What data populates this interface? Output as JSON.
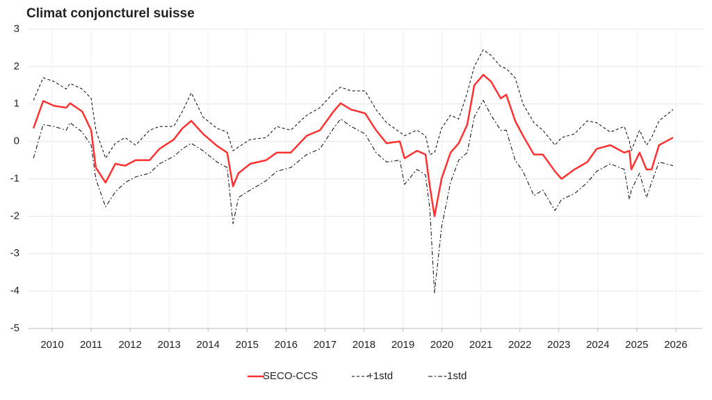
{
  "chart_data": {
    "type": "line",
    "title": "Climat conjoncturel suisse",
    "x": [
      2010.02,
      2010.27,
      2010.55,
      2010.86,
      2010.96,
      2011.27,
      2011.5,
      2011.62,
      2011.87,
      2012.12,
      2012.37,
      2012.64,
      2013.0,
      2013.25,
      2013.62,
      2013.84,
      2014.07,
      2014.37,
      2014.73,
      2014.99,
      2015.14,
      2015.28,
      2015.58,
      2015.99,
      2016.26,
      2016.62,
      2017.03,
      2017.37,
      2017.72,
      2017.9,
      2018.17,
      2018.53,
      2018.81,
      2019.08,
      2019.42,
      2019.54,
      2019.86,
      2020.08,
      2020.19,
      2020.31,
      2020.49,
      2020.72,
      2020.93,
      2021.15,
      2021.33,
      2021.56,
      2021.76,
      2022.01,
      2022.15,
      2022.38,
      2022.58,
      2022.86,
      2023.09,
      2023.4,
      2023.57,
      2023.9,
      2024.23,
      2024.47,
      2024.82,
      2025.18,
      2025.31,
      2025.36,
      2025.57,
      2025.75,
      2025.88,
      2026.07,
      2026.43
    ],
    "series": [
      {
        "name": "SECO-CCS",
        "color": "#ff3030",
        "width": 2.5,
        "dash": "none",
        "values": [
          0.35,
          1.08,
          0.95,
          0.9,
          1.02,
          0.8,
          0.3,
          -0.7,
          -1.1,
          -0.6,
          -0.65,
          -0.5,
          -0.5,
          -0.2,
          0.05,
          0.35,
          0.55,
          0.2,
          -0.12,
          -0.3,
          -1.2,
          -0.85,
          -0.6,
          -0.5,
          -0.3,
          -0.3,
          0.15,
          0.3,
          0.8,
          1.02,
          0.85,
          0.75,
          0.3,
          -0.05,
          0.0,
          -0.45,
          -0.25,
          -0.35,
          -1.2,
          -2.0,
          -1.0,
          -0.3,
          -0.05,
          0.45,
          1.5,
          1.78,
          1.6,
          1.15,
          1.25,
          0.55,
          0.15,
          -0.35,
          -0.35,
          -0.8,
          -1.0,
          -0.75,
          -0.55,
          -0.2,
          -0.1,
          -0.3,
          -0.25,
          -0.75,
          -0.3,
          -0.75,
          -0.75,
          -0.1,
          0.1
        ]
      },
      {
        "name": "+1std",
        "color": "#000000",
        "width": 1,
        "dash": "4,3",
        "values": [
          1.1,
          1.7,
          1.6,
          1.4,
          1.55,
          1.4,
          1.15,
          0.3,
          -0.45,
          -0.05,
          0.1,
          -0.1,
          0.3,
          0.4,
          0.4,
          0.8,
          1.3,
          0.65,
          0.35,
          0.25,
          -0.25,
          -0.15,
          0.05,
          0.1,
          0.4,
          0.3,
          0.7,
          0.9,
          1.3,
          1.45,
          1.35,
          1.35,
          0.85,
          0.5,
          0.25,
          0.15,
          0.3,
          0.15,
          -0.35,
          -0.3,
          0.35,
          0.7,
          0.6,
          1.3,
          2.0,
          2.45,
          2.3,
          2.0,
          1.95,
          1.7,
          1.0,
          0.5,
          0.3,
          -0.1,
          0.1,
          0.2,
          0.55,
          0.5,
          0.25,
          0.4,
          0.0,
          -0.25,
          0.3,
          -0.1,
          0.1,
          0.55,
          0.85
        ]
      },
      {
        "name": "-1std",
        "color": "#000000",
        "width": 1,
        "dash": "6,3,2,3",
        "values": [
          -0.45,
          0.45,
          0.4,
          0.3,
          0.5,
          0.25,
          -0.1,
          -1.0,
          -1.75,
          -1.35,
          -1.1,
          -0.95,
          -0.85,
          -0.6,
          -0.4,
          -0.2,
          -0.05,
          -0.25,
          -0.55,
          -0.7,
          -2.2,
          -1.5,
          -1.3,
          -1.05,
          -0.8,
          -0.7,
          -0.35,
          -0.2,
          0.35,
          0.6,
          0.4,
          0.2,
          -0.3,
          -0.55,
          -0.5,
          -1.15,
          -0.75,
          -0.9,
          -1.8,
          -4.05,
          -2.3,
          -1.1,
          -0.5,
          -0.3,
          0.65,
          1.1,
          0.7,
          0.3,
          0.3,
          -0.5,
          -0.8,
          -1.45,
          -1.3,
          -1.85,
          -1.55,
          -1.4,
          -1.1,
          -0.8,
          -0.6,
          -0.75,
          -1.55,
          -1.3,
          -0.85,
          -1.5,
          -1.1,
          -0.55,
          -0.65
        ]
      }
    ],
    "xlim": [
      2009.875,
      2027.18
    ],
    "xticks": [
      {
        "value": 2010.5,
        "label": "2010"
      },
      {
        "value": 2011.5,
        "label": "2011"
      },
      {
        "value": 2012.5,
        "label": "2012"
      },
      {
        "value": 2013.5,
        "label": "2013"
      },
      {
        "value": 2014.5,
        "label": "2014"
      },
      {
        "value": 2015.5,
        "label": "2015"
      },
      {
        "value": 2016.5,
        "label": "2016"
      },
      {
        "value": 2017.5,
        "label": "2017"
      },
      {
        "value": 2018.5,
        "label": "2018"
      },
      {
        "value": 2019.5,
        "label": "2019"
      },
      {
        "value": 2020.5,
        "label": "2020"
      },
      {
        "value": 2021.5,
        "label": "2021"
      },
      {
        "value": 2022.5,
        "label": "2022"
      },
      {
        "value": 2023.5,
        "label": "2023"
      },
      {
        "value": 2024.5,
        "label": "2024"
      },
      {
        "value": 2025.5,
        "label": "2025"
      },
      {
        "value": 2026.5,
        "label": "2026"
      }
    ],
    "ylim": [
      -5,
      3
    ],
    "yticks": [
      3,
      2,
      1,
      0,
      -1,
      -2,
      -3,
      -4,
      -5
    ],
    "grid": true,
    "legend": "bottom"
  }
}
